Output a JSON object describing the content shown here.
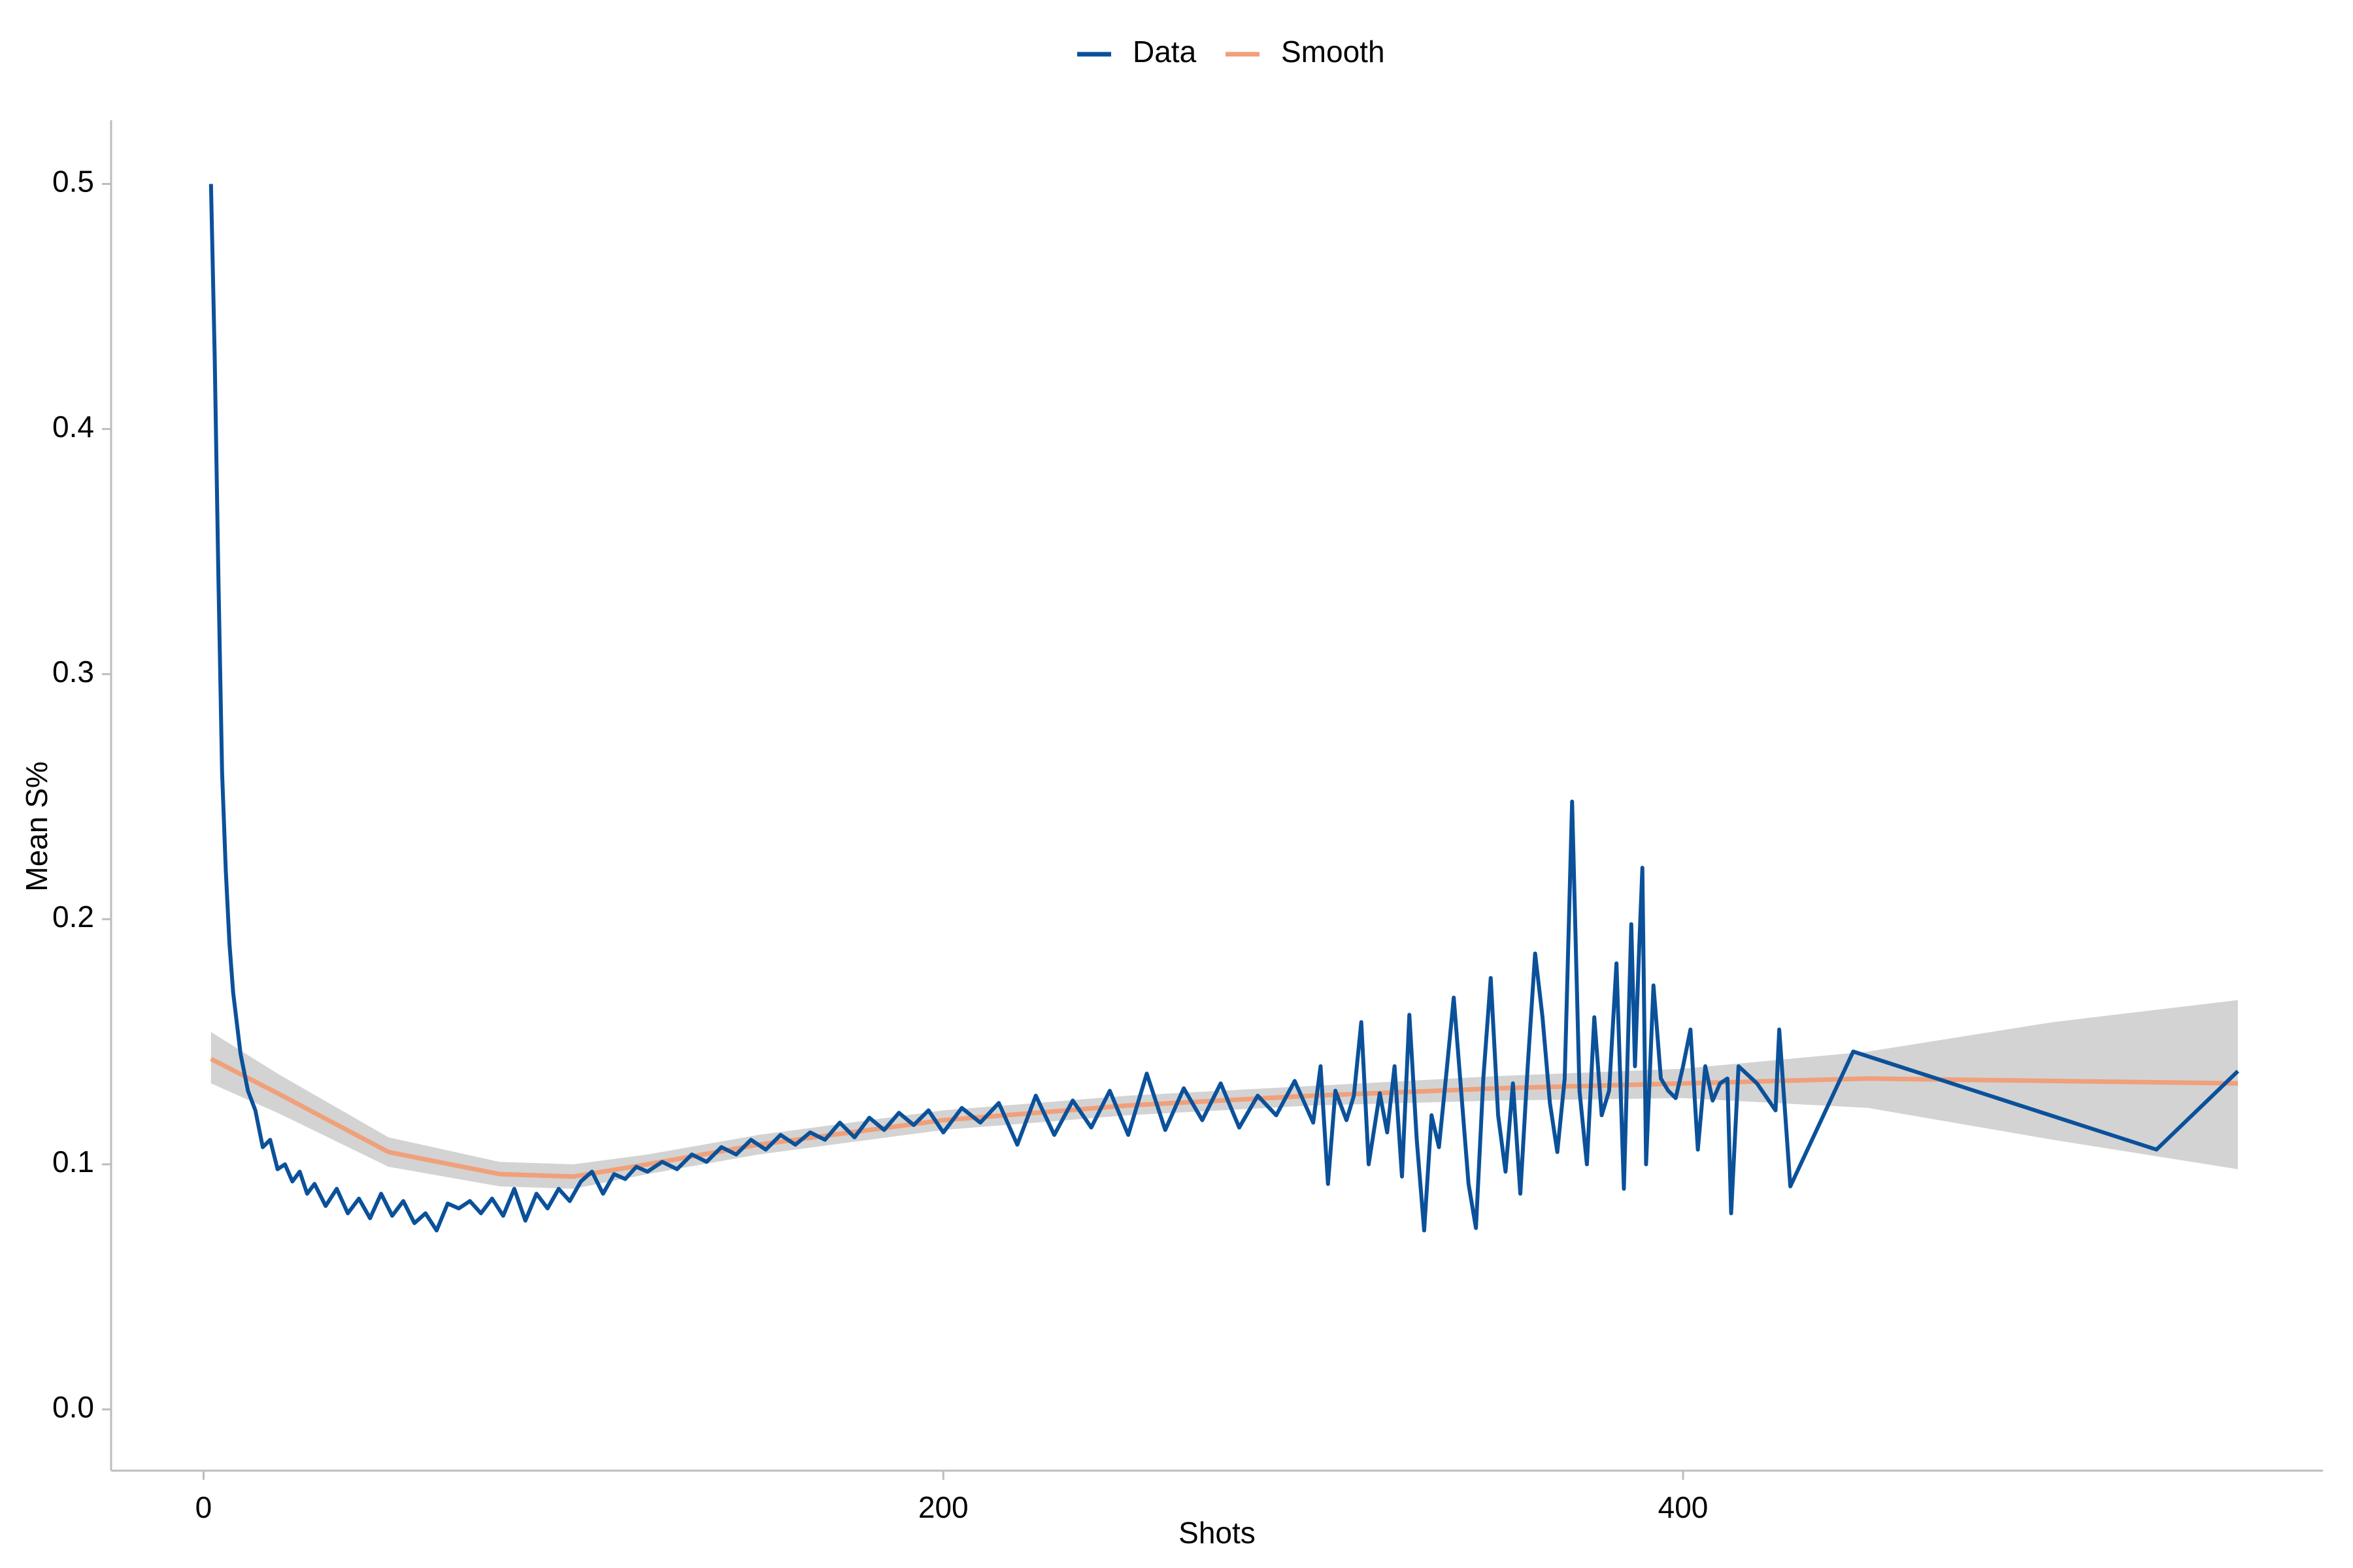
{
  "chart_data": {
    "type": "line",
    "x_label": "Shots",
    "y_label": "Mean S%",
    "xlim": [
      -25,
      573
    ],
    "ylim": [
      -0.025,
      0.526
    ],
    "xticks": [
      0,
      200,
      400
    ],
    "yticks": [
      {
        "value": 0,
        "label": "0.0"
      },
      0.1,
      0.2,
      0.3,
      0.4,
      0.5
    ],
    "band_color": "#d3d3d3",
    "x": [
      2,
      3,
      4,
      5,
      6,
      7,
      8,
      10,
      12,
      14,
      16,
      18,
      20,
      22,
      24,
      26,
      28,
      30,
      33,
      36,
      39,
      42,
      45,
      48,
      51,
      54,
      57,
      60,
      63,
      66,
      69,
      72,
      75,
      78,
      81,
      84,
      87,
      90,
      93,
      96,
      99,
      102,
      105,
      108,
      111,
      114,
      117,
      120,
      124,
      128,
      132,
      136,
      140,
      144,
      148,
      152,
      156,
      160,
      164,
      168,
      172,
      176,
      180,
      184,
      188,
      192,
      196,
      200,
      205,
      210,
      215,
      220,
      225,
      230,
      235,
      240,
      245,
      250,
      255,
      260,
      265,
      270,
      275,
      280,
      285,
      290,
      295,
      300,
      302,
      304,
      306,
      309,
      311,
      313,
      315,
      318,
      320,
      322,
      324,
      326,
      328,
      330,
      332,
      334,
      336,
      338,
      340,
      342,
      344,
      346,
      348,
      350,
      352,
      354,
      356,
      358,
      360,
      362,
      364,
      366,
      368,
      370,
      372,
      374,
      376,
      378,
      380,
      382,
      384,
      386,
      387,
      388,
      389,
      390,
      392,
      394,
      396,
      398,
      400,
      402,
      404,
      406,
      408,
      410,
      412,
      413,
      415,
      420,
      425,
      426,
      429,
      446,
      528,
      550
    ],
    "series": [
      {
        "name": "Data",
        "color": "#0b519a",
        "values": [
          0.5,
          0.43,
          0.34,
          0.26,
          0.22,
          0.19,
          0.17,
          0.145,
          0.13,
          0.122,
          0.107,
          0.11,
          0.098,
          0.1,
          0.093,
          0.097,
          0.088,
          0.092,
          0.083,
          0.09,
          0.08,
          0.086,
          0.078,
          0.088,
          0.079,
          0.085,
          0.076,
          0.08,
          0.073,
          0.084,
          0.082,
          0.085,
          0.08,
          0.086,
          0.079,
          0.09,
          0.077,
          0.088,
          0.082,
          0.09,
          0.085,
          0.093,
          0.097,
          0.088,
          0.096,
          0.094,
          0.099,
          0.097,
          0.101,
          0.098,
          0.104,
          0.101,
          0.107,
          0.104,
          0.11,
          0.106,
          0.112,
          0.108,
          0.113,
          0.11,
          0.117,
          0.111,
          0.119,
          0.114,
          0.121,
          0.116,
          0.122,
          0.113,
          0.123,
          0.117,
          0.125,
          0.108,
          0.128,
          0.112,
          0.126,
          0.115,
          0.13,
          0.112,
          0.137,
          0.114,
          0.131,
          0.118,
          0.133,
          0.115,
          0.128,
          0.12,
          0.134,
          0.117,
          0.14,
          0.092,
          0.13,
          0.118,
          0.128,
          0.158,
          0.1,
          0.129,
          0.113,
          0.14,
          0.095,
          0.161,
          0.11,
          0.073,
          0.12,
          0.107,
          0.137,
          0.168,
          0.13,
          0.092,
          0.074,
          0.135,
          0.176,
          0.12,
          0.097,
          0.133,
          0.088,
          0.14,
          0.186,
          0.16,
          0.125,
          0.105,
          0.135,
          0.248,
          0.13,
          0.1,
          0.16,
          0.12,
          0.13,
          0.182,
          0.09,
          0.198,
          0.14,
          0.183,
          0.221,
          0.1,
          0.173,
          0.135,
          0.13,
          0.127,
          0.14,
          0.155,
          0.106,
          0.14,
          0.126,
          0.133,
          0.135,
          0.08,
          0.14,
          0.133,
          0.122,
          0.155,
          0.091,
          0.146,
          0.106,
          0.138
        ]
      },
      {
        "name": "Smooth",
        "color": "#f0a07a",
        "x": [
          2,
          20,
          50,
          80,
          100,
          120,
          150,
          200,
          250,
          300,
          350,
          400,
          450,
          500,
          550
        ],
        "values": [
          0.143,
          0.129,
          0.105,
          0.096,
          0.095,
          0.1,
          0.108,
          0.118,
          0.124,
          0.128,
          0.131,
          0.133,
          0.135,
          0.134,
          0.133
        ],
        "lower": [
          0.133,
          0.121,
          0.099,
          0.091,
          0.09,
          0.096,
          0.104,
          0.114,
          0.12,
          0.124,
          0.126,
          0.127,
          0.123,
          0.11,
          0.098
        ],
        "upper": [
          0.154,
          0.137,
          0.111,
          0.101,
          0.1,
          0.104,
          0.112,
          0.122,
          0.128,
          0.132,
          0.136,
          0.139,
          0.146,
          0.158,
          0.167
        ]
      }
    ]
  }
}
